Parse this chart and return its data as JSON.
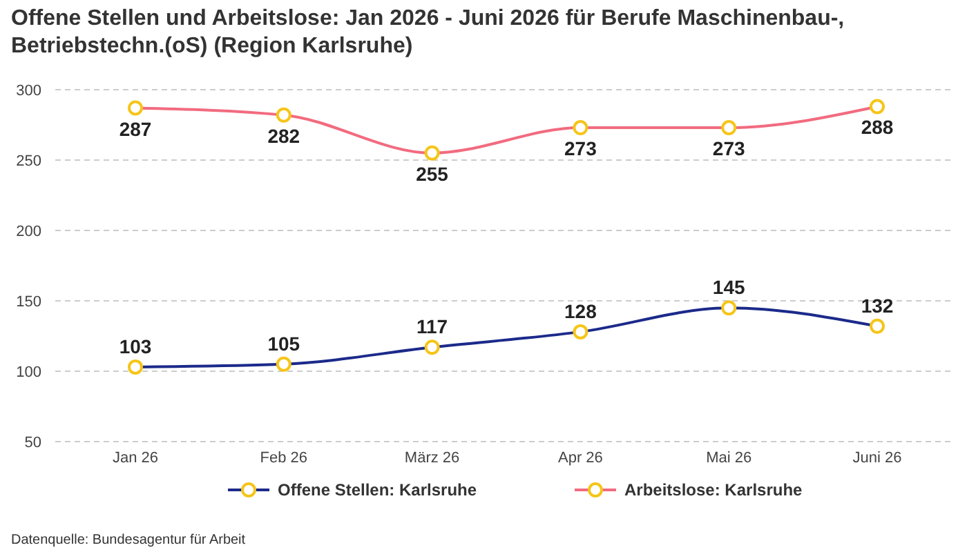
{
  "chart_data": {
    "type": "line",
    "title": "Offene Stellen und Arbeitslose: Jan 2026 - Juni 2026 für Berufe Maschinenbau-, Betriebstechn.(oS) (Region Karlsruhe)",
    "categories": [
      "Jan 26",
      "Feb 26",
      "März 26",
      "Apr 26",
      "Mai 26",
      "Juni 26"
    ],
    "series": [
      {
        "name": "Offene Stellen: Karlsruhe",
        "color": "#1b2a8a",
        "values": [
          103,
          105,
          117,
          128,
          145,
          132
        ]
      },
      {
        "name": "Arbeitslose: Karlsruhe",
        "color": "#f26b7f",
        "values": [
          287,
          282,
          255,
          273,
          273,
          288
        ]
      }
    ],
    "ylim": [
      50,
      300
    ],
    "yticks": [
      50,
      100,
      150,
      200,
      250,
      300
    ],
    "grid": "y",
    "line_style": "solid",
    "marker": "circle",
    "data_labels": true,
    "legend": "bottom",
    "annotations": [
      "Datenquelle: Bundesagentur für Arbeit"
    ]
  }
}
